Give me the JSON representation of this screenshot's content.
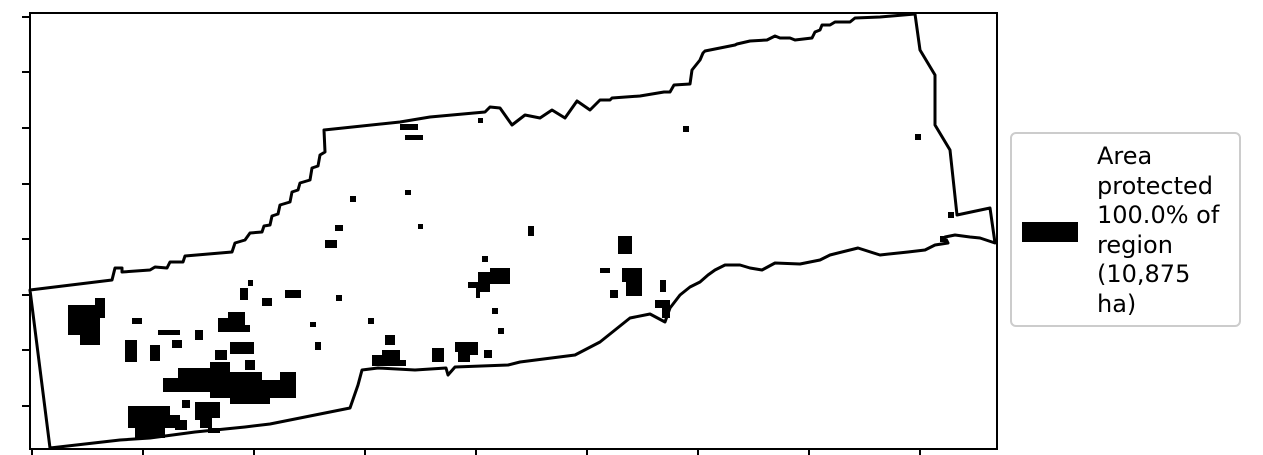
{
  "legend": {
    "lines": [
      "Area",
      "protected",
      "100.0% of",
      "region",
      "(10,875",
      "ha)"
    ]
  },
  "colors": {
    "protected_fill": "#000000",
    "region_outline": "#000000",
    "background": "#ffffff",
    "legend_border": "#cccccc"
  },
  "map": {
    "axis_ticks_labeled": false
  }
}
